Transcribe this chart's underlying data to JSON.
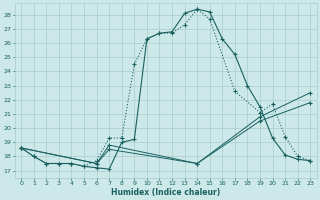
{
  "xlabel": "Humidex (Indice chaleur)",
  "bg_color": "#cce8e8",
  "grid_color": "#aacccc",
  "line_color": "#1a6060",
  "xlim": [
    -0.5,
    23.5
  ],
  "ylim": [
    16.5,
    28.8
  ],
  "yticks": [
    17,
    18,
    19,
    20,
    21,
    22,
    23,
    24,
    25,
    26,
    27,
    28
  ],
  "xticks": [
    0,
    1,
    2,
    3,
    4,
    5,
    6,
    7,
    8,
    9,
    10,
    11,
    12,
    13,
    14,
    15,
    16,
    17,
    18,
    19,
    20,
    21,
    22,
    23
  ],
  "curve1_x": [
    0,
    1,
    2,
    3,
    4,
    5,
    6,
    7,
    8,
    9,
    10,
    11,
    12,
    13,
    14,
    15,
    16,
    17,
    18,
    19,
    20,
    21,
    22,
    23
  ],
  "curve1_y": [
    18.6,
    18.0,
    17.5,
    17.5,
    17.5,
    17.3,
    17.2,
    17.1,
    19.0,
    19.2,
    26.3,
    26.7,
    26.8,
    28.1,
    28.4,
    28.2,
    26.3,
    25.2,
    23.0,
    21.5,
    19.3,
    18.1,
    17.8,
    17.7
  ],
  "curve1_style": "solid",
  "curve2_x": [
    0,
    1,
    2,
    3,
    4,
    5,
    6,
    7,
    8,
    9,
    10,
    11,
    12,
    13,
    14,
    15,
    17,
    19,
    20,
    21,
    22,
    23
  ],
  "curve2_y": [
    18.6,
    18.0,
    17.5,
    17.5,
    17.5,
    17.3,
    17.7,
    19.3,
    19.3,
    24.5,
    26.3,
    26.7,
    26.7,
    27.3,
    28.4,
    27.7,
    22.6,
    21.1,
    21.7,
    19.4,
    18.0,
    17.7
  ],
  "curve2_style": "dotted",
  "curve3_x": [
    0,
    6,
    7,
    14,
    19,
    23
  ],
  "curve3_y": [
    18.6,
    17.5,
    18.8,
    17.5,
    20.8,
    22.5
  ],
  "curve3_style": "solid",
  "curve4_x": [
    0,
    6,
    7,
    14,
    19,
    23
  ],
  "curve4_y": [
    18.6,
    17.5,
    18.5,
    17.5,
    20.5,
    21.8
  ],
  "curve4_style": "solid"
}
